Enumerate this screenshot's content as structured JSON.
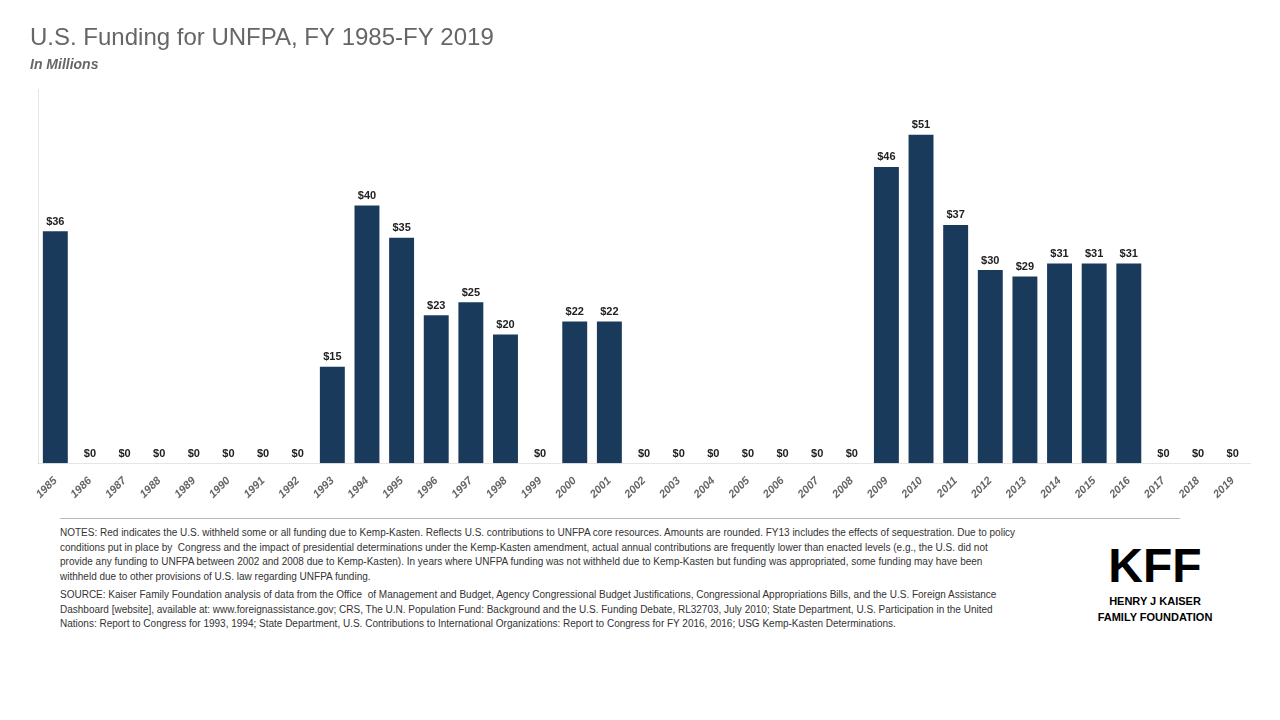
{
  "chart_data": {
    "type": "bar",
    "title": "U.S. Funding for UNFPA, FY 1985-FY 2019",
    "subtitle": "In Millions",
    "categories": [
      "1985",
      "1986",
      "1987",
      "1988",
      "1989",
      "1990",
      "1991",
      "1992",
      "1993",
      "1994",
      "1995",
      "1996",
      "1997",
      "1998",
      "1999",
      "2000",
      "2001",
      "2002",
      "2003",
      "2004",
      "2005",
      "2006",
      "2007",
      "2008",
      "2009",
      "2010",
      "2011",
      "2012",
      "2013",
      "2014",
      "2015",
      "2016",
      "2017",
      "2018",
      "2019"
    ],
    "values": [
      36,
      0,
      0,
      0,
      0,
      0,
      0,
      0,
      15,
      40,
      35,
      23,
      25,
      20,
      0,
      22,
      22,
      0,
      0,
      0,
      0,
      0,
      0,
      0,
      46,
      51,
      37,
      30,
      29,
      31,
      31,
      31,
      0,
      0,
      0
    ],
    "value_labels": [
      "$36",
      "$0",
      "$0",
      "$0",
      "$0",
      "$0",
      "$0",
      "$0",
      "$15",
      "$40",
      "$35",
      "$23",
      "$25",
      "$20",
      "$0",
      "$22",
      "$22",
      "$0",
      "$0",
      "$0",
      "$0",
      "$0",
      "$0",
      "$0",
      "$46",
      "$51",
      "$37",
      "$30",
      "$29",
      "$31",
      "$31",
      "$31",
      "$0",
      "$0",
      "$0"
    ],
    "color": "#1a3a5c",
    "data_labels": true,
    "ylim": [
      0,
      58
    ],
    "tick_labels": "x",
    "grid": false,
    "notes": "NOTES: Red indicates the U.S. withheld some or all funding due to Kemp-Kasten. Reflects U.S. contributions to UNFPA core resources. Amounts are rounded. FY13 includes the effects of sequestration. Due to policy conditions put in place by  Congress and the impact of presidential determinations under the Kemp-Kasten amendment, actual annual contributions are frequently lower than enacted levels (e.g., the U.S. did not provide any funding to UNFPA between 2002 and 2008 due to Kemp-Kasten). In years where UNFPA funding was not withheld due to Kemp-Kasten but funding was appropriated, some funding may have been withheld due to other provisions of U.S. law regarding UNFPA funding.",
    "source": "SOURCE: Kaiser Family Foundation analysis of data from the Office  of Management and Budget, Agency Congressional Budget Justifications, Congressional Appropriations Bills, and the U.S. Foreign Assistance Dashboard [website], available at: www.foreignassistance.gov; CRS, The U.N. Population Fund: Background and the U.S. Funding Debate, RL32703, July 2010; State Department, U.S. Participation in the United Nations: Report to Congress for 1993, 1994; State Department, U.S. Contributions to International Organizations: Report to Congress for FY 2016, 2016; USG Kemp-Kasten Determinations.",
    "logo": [
      "KFF",
      "HENRY J KAISER",
      "FAMILY FOUNDATION"
    ]
  }
}
